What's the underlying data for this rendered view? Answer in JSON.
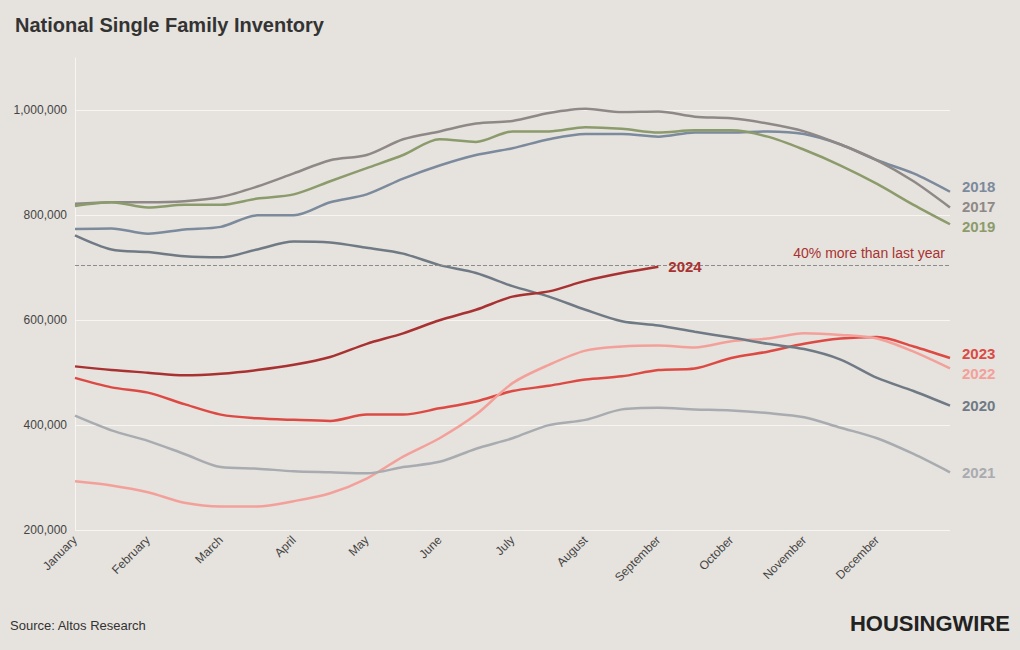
{
  "chart_data": {
    "type": "line",
    "title": "National Single Family Inventory",
    "source": "Source: Altos Research",
    "brand": "HOUSINGWIRE",
    "grid": true,
    "categories": [
      "January",
      null,
      "February",
      null,
      "March",
      null,
      "April",
      null,
      "May",
      null,
      "June",
      null,
      "July",
      null,
      "August",
      null,
      "September",
      null,
      "October",
      null,
      "November",
      null,
      "December",
      null,
      null
    ],
    "ylim": [
      200000,
      1100000
    ],
    "yticks": [
      {
        "value": 200000,
        "label": "200,000"
      },
      {
        "value": 400000,
        "label": "400,000"
      },
      {
        "value": 600000,
        "label": "600,000"
      },
      {
        "value": 800000,
        "label": "800,000"
      },
      {
        "value": 1000000,
        "label": "1,000,000"
      }
    ],
    "annotations": [
      {
        "text": "40% more than last year",
        "y": 705000
      }
    ],
    "series": [
      {
        "name": "2018",
        "color": "#7b8a9c",
        "values": [
          774000,
          775000,
          765000,
          773000,
          778000,
          800000,
          800000,
          825000,
          840000,
          870000,
          895000,
          915000,
          928000,
          945000,
          955000,
          955000,
          950000,
          958000,
          958000,
          960000,
          955000,
          935000,
          905000,
          880000,
          845000
        ]
      },
      {
        "name": "2017",
        "color": "#8e8987",
        "values": [
          822000,
          825000,
          825000,
          827000,
          835000,
          855000,
          880000,
          905000,
          915000,
          945000,
          960000,
          975000,
          980000,
          995000,
          1003000,
          997000,
          998000,
          988000,
          985000,
          975000,
          960000,
          935000,
          905000,
          865000,
          815000
        ]
      },
      {
        "name": "2019",
        "color": "#8b9b6b",
        "values": [
          818000,
          825000,
          815000,
          820000,
          820000,
          832000,
          840000,
          865000,
          890000,
          915000,
          945000,
          940000,
          960000,
          960000,
          968000,
          965000,
          958000,
          962000,
          962000,
          950000,
          925000,
          895000,
          860000,
          820000,
          783000
        ]
      },
      {
        "name": "2024",
        "color": "#a83232",
        "values": [
          512000,
          505000,
          500000,
          495000,
          498000,
          505000,
          515000,
          530000,
          555000,
          575000,
          600000,
          620000,
          645000,
          655000,
          675000,
          690000,
          702000,
          null,
          null,
          null,
          null,
          null,
          null,
          null,
          null
        ]
      },
      {
        "name": "2023",
        "color": "#dc4a43",
        "values": [
          490000,
          472000,
          462000,
          440000,
          420000,
          413000,
          410000,
          408000,
          420000,
          420000,
          432000,
          445000,
          465000,
          475000,
          487000,
          493000,
          505000,
          508000,
          528000,
          540000,
          555000,
          565000,
          568000,
          550000,
          528000
        ]
      },
      {
        "name": "2022",
        "color": "#f4a09a",
        "values": [
          293000,
          285000,
          272000,
          252000,
          245000,
          245000,
          255000,
          270000,
          298000,
          340000,
          375000,
          420000,
          480000,
          515000,
          542000,
          550000,
          552000,
          548000,
          560000,
          565000,
          575000,
          572000,
          565000,
          540000,
          508000
        ]
      },
      {
        "name": "2020",
        "color": "#6f7a85",
        "values": [
          762000,
          735000,
          730000,
          722000,
          720000,
          735000,
          750000,
          748000,
          738000,
          727000,
          705000,
          690000,
          665000,
          645000,
          620000,
          598000,
          590000,
          578000,
          567000,
          555000,
          545000,
          525000,
          490000,
          465000,
          437000
        ]
      },
      {
        "name": "2021",
        "color": "#a8acb0",
        "values": [
          418000,
          390000,
          370000,
          345000,
          320000,
          317000,
          312000,
          310000,
          308000,
          320000,
          330000,
          355000,
          375000,
          400000,
          410000,
          430000,
          433000,
          430000,
          428000,
          423000,
          415000,
          395000,
          375000,
          345000,
          310000
        ]
      }
    ]
  }
}
